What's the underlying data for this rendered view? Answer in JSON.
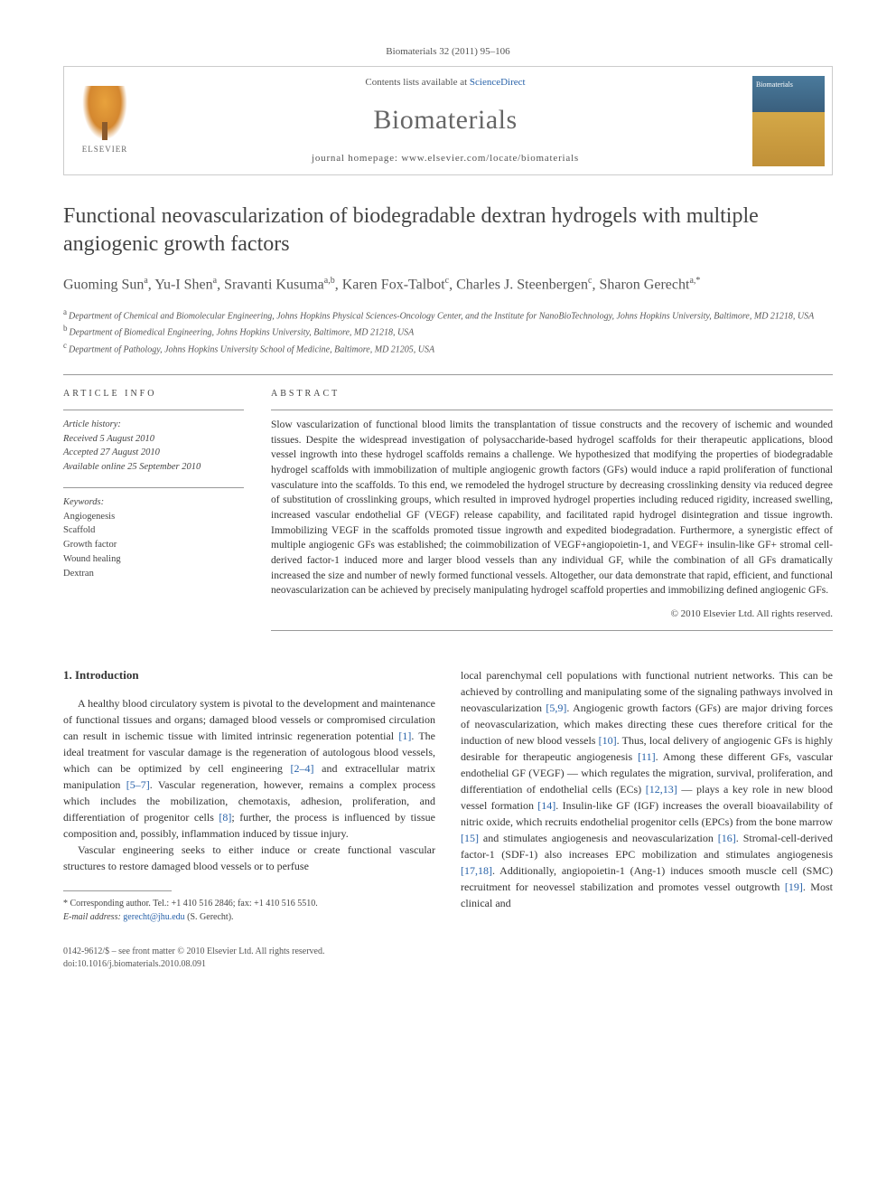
{
  "citation": "Biomaterials 32 (2011) 95–106",
  "header": {
    "elsevier_label": "ELSEVIER",
    "contents_prefix": "Contents lists available at ",
    "contents_link": "ScienceDirect",
    "journal_name": "Biomaterials",
    "homepage_prefix": "journal homepage: ",
    "homepage_url": "www.elsevier.com/locate/biomaterials",
    "cover_label": "Biomaterials"
  },
  "article": {
    "title": "Functional neovascularization of biodegradable dextran hydrogels with multiple angiogenic growth factors",
    "authors_html": "Guoming Sun<sup>a</sup>, Yu-I Shen<sup>a</sup>, Sravanti Kusuma<sup>a,b</sup>, Karen Fox-Talbot<sup>c</sup>, Charles J. Steenbergen<sup>c</sup>, Sharon Gerecht<sup>a,*</sup>",
    "affiliations": {
      "a": "Department of Chemical and Biomolecular Engineering, Johns Hopkins Physical Sciences-Oncology Center, and the Institute for NanoBioTechnology, Johns Hopkins University, Baltimore, MD 21218, USA",
      "b": "Department of Biomedical Engineering, Johns Hopkins University, Baltimore, MD 21218, USA",
      "c": "Department of Pathology, Johns Hopkins University School of Medicine, Baltimore, MD 21205, USA"
    }
  },
  "info": {
    "article_info_heading": "ARTICLE INFO",
    "abstract_heading": "ABSTRACT",
    "history_label": "Article history:",
    "received": "Received 5 August 2010",
    "accepted": "Accepted 27 August 2010",
    "online": "Available online 25 September 2010",
    "keywords_label": "Keywords:",
    "keywords": [
      "Angiogenesis",
      "Scaffold",
      "Growth factor",
      "Wound healing",
      "Dextran"
    ],
    "abstract_text": "Slow vascularization of functional blood limits the transplantation of tissue constructs and the recovery of ischemic and wounded tissues. Despite the widespread investigation of polysaccharide-based hydrogel scaffolds for their therapeutic applications, blood vessel ingrowth into these hydrogel scaffolds remains a challenge. We hypothesized that modifying the properties of biodegradable hydrogel scaffolds with immobilization of multiple angiogenic growth factors (GFs) would induce a rapid proliferation of functional vasculature into the scaffolds. To this end, we remodeled the hydrogel structure by decreasing crosslinking density via reduced degree of substitution of crosslinking groups, which resulted in improved hydrogel properties including reduced rigidity, increased swelling, increased vascular endothelial GF (VEGF) release capability, and facilitated rapid hydrogel disintegration and tissue ingrowth. Immobilizing VEGF in the scaffolds promoted tissue ingrowth and expedited biodegradation. Furthermore, a synergistic effect of multiple angiogenic GFs was established; the coimmobilization of VEGF+angiopoietin-1, and VEGF+ insulin-like GF+ stromal cell-derived factor-1 induced more and larger blood vessels than any individual GF, while the combination of all GFs dramatically increased the size and number of newly formed functional vessels. Altogether, our data demonstrate that rapid, efficient, and functional neovascularization can be achieved by precisely manipulating hydrogel scaffold properties and immobilizing defined angiogenic GFs.",
    "copyright": "© 2010 Elsevier Ltd. All rights reserved."
  },
  "body": {
    "section_heading": "1. Introduction",
    "col1_p1": "A healthy blood circulatory system is pivotal to the development and maintenance of functional tissues and organs; damaged blood vessels or compromised circulation can result in ischemic tissue with limited intrinsic regeneration potential [1]. The ideal treatment for vascular damage is the regeneration of autologous blood vessels, which can be optimized by cell engineering [2–4] and extracellular matrix manipulation [5–7]. Vascular regeneration, however, remains a complex process which includes the mobilization, chemotaxis, adhesion, proliferation, and differentiation of progenitor cells [8]; further, the process is influenced by tissue composition and, possibly, inflammation induced by tissue injury.",
    "col1_p2": "Vascular engineering seeks to either induce or create functional vascular structures to restore damaged blood vessels or to perfuse",
    "col2_p1": "local parenchymal cell populations with functional nutrient networks. This can be achieved by controlling and manipulating some of the signaling pathways involved in neovascularization [5,9]. Angiogenic growth factors (GFs) are major driving forces of neovascularization, which makes directing these cues therefore critical for the induction of new blood vessels [10]. Thus, local delivery of angiogenic GFs is highly desirable for therapeutic angiogenesis [11]. Among these different GFs, vascular endothelial GF (VEGF) — which regulates the migration, survival, proliferation, and differentiation of endothelial cells (ECs) [12,13] — plays a key role in new blood vessel formation [14]. Insulin-like GF (IGF) increases the overall bioavailability of nitric oxide, which recruits endothelial progenitor cells (EPCs) from the bone marrow [15] and stimulates angiogenesis and neovascularization [16]. Stromal-cell-derived factor-1 (SDF-1) also increases EPC mobilization and stimulates angiogenesis [17,18]. Additionally, angiopoietin-1 (Ang-1) induces smooth muscle cell (SMC) recruitment for neovessel stabilization and promotes vessel outgrowth [19]. Most clinical and"
  },
  "footnote": {
    "corr": "* Corresponding author. Tel.: +1 410 516 2846; fax: +1 410 516 5510.",
    "email_label": "E-mail address: ",
    "email": "gerecht@jhu.edu",
    "email_suffix": " (S. Gerecht)."
  },
  "footer": {
    "line1": "0142-9612/$ – see front matter © 2010 Elsevier Ltd. All rights reserved.",
    "line2": "doi:10.1016/j.biomaterials.2010.08.091"
  },
  "refs": {
    "r1": "[1]",
    "r2_4": "[2–4]",
    "r5_7": "[5–7]",
    "r8": "[8]",
    "r5_9": "[5,9]",
    "r10": "[10]",
    "r11": "[11]",
    "r12_13": "[12,13]",
    "r14": "[14]",
    "r15": "[15]",
    "r16": "[16]",
    "r17_18": "[17,18]",
    "r19": "[19]"
  },
  "colors": {
    "link": "#2862a9",
    "text": "#333333",
    "muted": "#555555",
    "border": "#cccccc"
  }
}
